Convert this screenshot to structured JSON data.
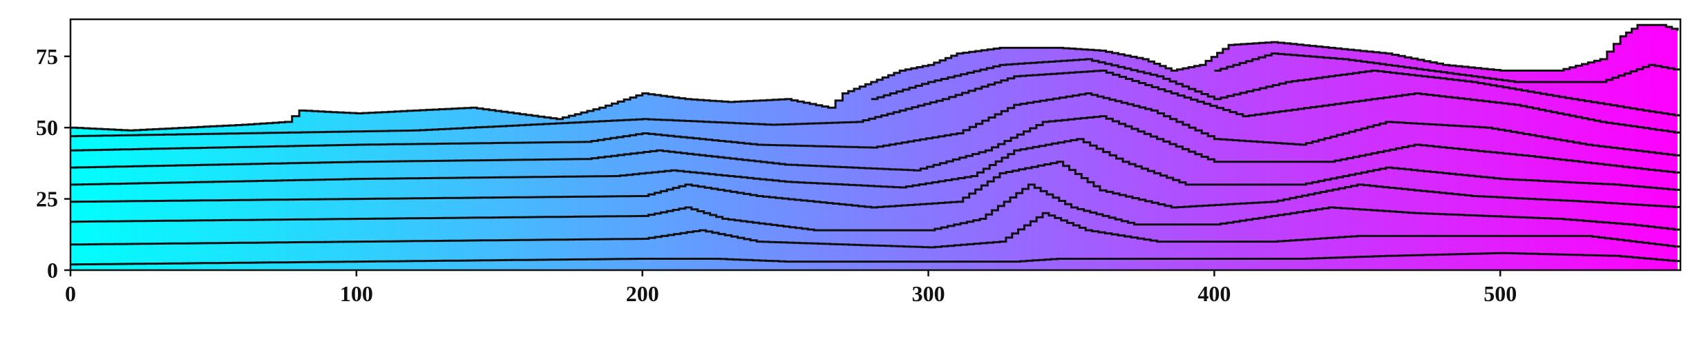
{
  "chart_data": {
    "type": "heatmap",
    "title": "",
    "xlabel": "",
    "ylabel": "",
    "xlim": [
      0,
      563
    ],
    "ylim": [
      0,
      88
    ],
    "xticks": [
      0,
      100,
      200,
      300,
      400,
      500
    ],
    "yticks": [
      0,
      25,
      50,
      75
    ],
    "colormap": {
      "name": "cool",
      "low_color": "#00ffff",
      "high_color": "#ff00ff"
    },
    "grid": false,
    "legend": "none",
    "surface_top": [
      [
        0,
        50
      ],
      [
        20,
        49
      ],
      [
        40,
        50
      ],
      [
        60,
        51
      ],
      [
        75,
        52
      ],
      [
        80,
        56
      ],
      [
        100,
        55
      ],
      [
        120,
        56
      ],
      [
        140,
        57
      ],
      [
        155,
        55
      ],
      [
        170,
        53
      ],
      [
        185,
        57
      ],
      [
        200,
        62
      ],
      [
        215,
        60
      ],
      [
        230,
        59
      ],
      [
        250,
        60
      ],
      [
        265,
        57
      ],
      [
        270,
        62
      ],
      [
        280,
        66
      ],
      [
        290,
        70
      ],
      [
        300,
        72
      ],
      [
        310,
        76
      ],
      [
        325,
        78
      ],
      [
        345,
        78
      ],
      [
        360,
        77
      ],
      [
        375,
        74
      ],
      [
        385,
        70
      ],
      [
        395,
        72
      ],
      [
        405,
        79
      ],
      [
        420,
        80
      ],
      [
        440,
        78
      ],
      [
        460,
        76
      ],
      [
        480,
        72
      ],
      [
        500,
        70
      ],
      [
        520,
        70
      ],
      [
        535,
        74
      ],
      [
        542,
        82
      ],
      [
        548,
        86
      ],
      [
        556,
        86
      ],
      [
        562,
        84
      ]
    ],
    "contours": [
      [
        [
          0,
          2
        ],
        [
          100,
          3
        ],
        [
          200,
          4
        ],
        [
          225,
          4
        ],
        [
          250,
          3
        ],
        [
          300,
          3
        ],
        [
          330,
          3
        ],
        [
          345,
          4
        ],
        [
          390,
          4
        ],
        [
          430,
          4
        ],
        [
          460,
          5
        ],
        [
          500,
          6
        ],
        [
          540,
          5
        ],
        [
          563,
          3
        ]
      ],
      [
        [
          0,
          9
        ],
        [
          100,
          10
        ],
        [
          200,
          11
        ],
        [
          220,
          14
        ],
        [
          240,
          10
        ],
        [
          300,
          8
        ],
        [
          325,
          10
        ],
        [
          340,
          20
        ],
        [
          355,
          14
        ],
        [
          380,
          10
        ],
        [
          420,
          10
        ],
        [
          450,
          12
        ],
        [
          500,
          12
        ],
        [
          530,
          12
        ],
        [
          563,
          8
        ]
      ],
      [
        [
          0,
          17
        ],
        [
          100,
          18
        ],
        [
          200,
          19
        ],
        [
          215,
          22
        ],
        [
          228,
          18
        ],
        [
          260,
          14
        ],
        [
          300,
          14
        ],
        [
          318,
          18
        ],
        [
          335,
          30
        ],
        [
          350,
          22
        ],
        [
          372,
          16
        ],
        [
          400,
          16
        ],
        [
          440,
          22
        ],
        [
          470,
          20
        ],
        [
          520,
          18
        ],
        [
          545,
          16
        ],
        [
          563,
          14
        ]
      ],
      [
        [
          0,
          24
        ],
        [
          100,
          25
        ],
        [
          200,
          26
        ],
        [
          215,
          30
        ],
        [
          240,
          26
        ],
        [
          280,
          22
        ],
        [
          310,
          24
        ],
        [
          325,
          34
        ],
        [
          345,
          38
        ],
        [
          360,
          28
        ],
        [
          385,
          22
        ],
        [
          420,
          24
        ],
        [
          450,
          30
        ],
        [
          490,
          26
        ],
        [
          530,
          24
        ],
        [
          563,
          22
        ]
      ],
      [
        [
          0,
          30
        ],
        [
          100,
          32
        ],
        [
          190,
          33
        ],
        [
          210,
          35
        ],
        [
          250,
          31
        ],
        [
          290,
          29
        ],
        [
          315,
          33
        ],
        [
          330,
          42
        ],
        [
          352,
          46
        ],
        [
          368,
          38
        ],
        [
          390,
          30
        ],
        [
          430,
          30
        ],
        [
          460,
          36
        ],
        [
          500,
          32
        ],
        [
          540,
          30
        ],
        [
          563,
          28
        ]
      ],
      [
        [
          0,
          36
        ],
        [
          100,
          38
        ],
        [
          180,
          39
        ],
        [
          205,
          42
        ],
        [
          250,
          37
        ],
        [
          295,
          35
        ],
        [
          320,
          42
        ],
        [
          340,
          52
        ],
        [
          360,
          54
        ],
        [
          380,
          46
        ],
        [
          400,
          38
        ],
        [
          440,
          38
        ],
        [
          470,
          44
        ],
        [
          510,
          40
        ],
        [
          545,
          36
        ],
        [
          563,
          34
        ]
      ],
      [
        [
          0,
          42
        ],
        [
          100,
          44
        ],
        [
          180,
          45
        ],
        [
          200,
          48
        ],
        [
          240,
          44
        ],
        [
          280,
          43
        ],
        [
          310,
          48
        ],
        [
          330,
          58
        ],
        [
          355,
          62
        ],
        [
          378,
          56
        ],
        [
          400,
          46
        ],
        [
          430,
          44
        ],
        [
          460,
          52
        ],
        [
          495,
          50
        ],
        [
          530,
          44
        ],
        [
          563,
          40
        ]
      ],
      [
        [
          0,
          47
        ],
        [
          120,
          49
        ],
        [
          200,
          53
        ],
        [
          245,
          51
        ],
        [
          275,
          52
        ],
        [
          305,
          60
        ],
        [
          330,
          68
        ],
        [
          360,
          70
        ],
        [
          385,
          62
        ],
        [
          410,
          54
        ],
        [
          440,
          58
        ],
        [
          470,
          62
        ],
        [
          505,
          58
        ],
        [
          535,
          52
        ],
        [
          563,
          48
        ]
      ],
      [
        [
          280,
          60
        ],
        [
          300,
          66
        ],
        [
          325,
          72
        ],
        [
          355,
          74
        ],
        [
          380,
          68
        ],
        [
          400,
          60
        ],
        [
          425,
          66
        ],
        [
          455,
          70
        ],
        [
          490,
          66
        ],
        [
          525,
          60
        ],
        [
          550,
          56
        ],
        [
          563,
          54
        ]
      ],
      [
        [
          400,
          70
        ],
        [
          420,
          76
        ],
        [
          445,
          74
        ],
        [
          475,
          70
        ],
        [
          505,
          66
        ],
        [
          535,
          66
        ],
        [
          552,
          72
        ],
        [
          563,
          70
        ]
      ]
    ]
  }
}
